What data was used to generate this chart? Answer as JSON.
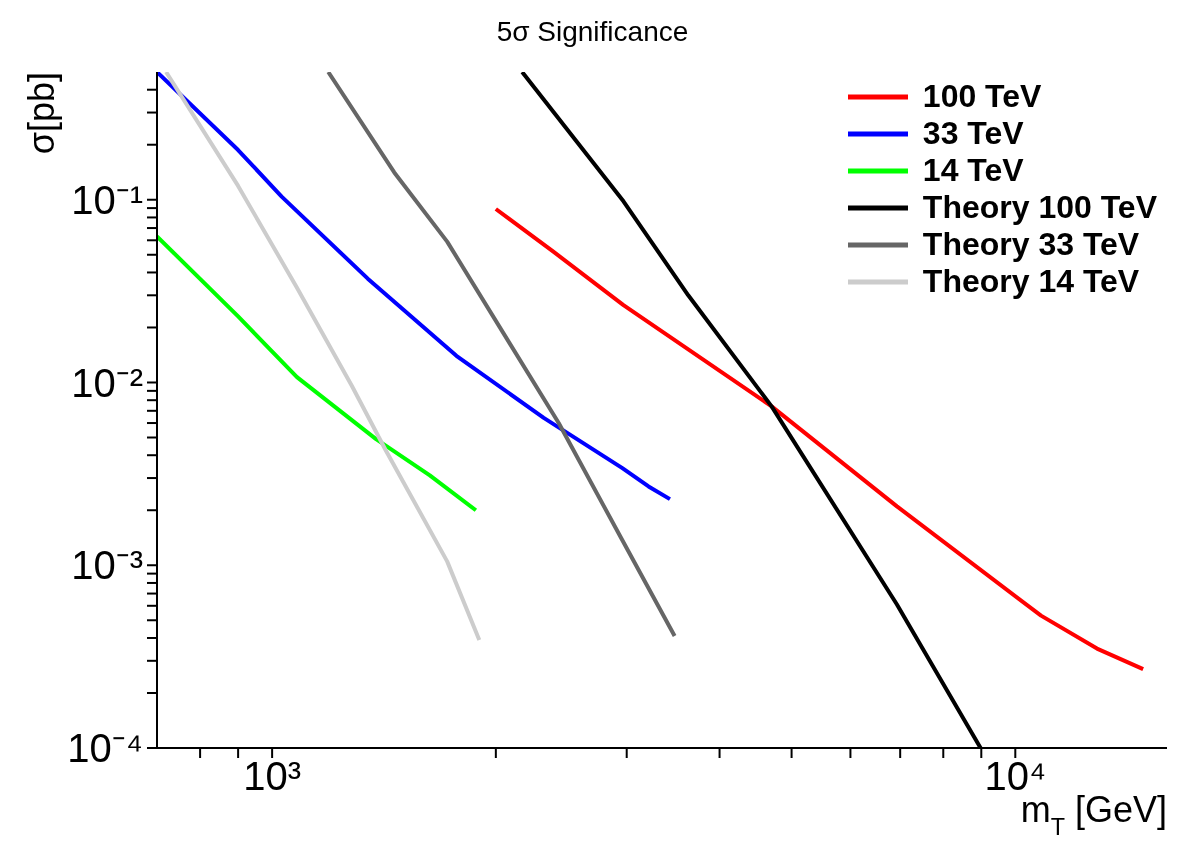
{
  "chart_data": {
    "type": "line",
    "title": "5σ Significance",
    "xlabel": "m$_{T}$ [GeV]",
    "ylabel": "σ[pb]",
    "log": "xy",
    "grid": false,
    "legend": "top right",
    "marker": "none",
    "line_style": "solid",
    "xlim": [
      700,
      16000
    ],
    "ylim": [
      0.0001,
      0.5
    ],
    "xticks": [
      {
        "value": 800,
        "label": null
      },
      {
        "value": 900,
        "label": null
      },
      {
        "value": 1000,
        "label": "10³"
      },
      {
        "value": 2000,
        "label": null
      },
      {
        "value": 3000,
        "label": null
      },
      {
        "value": 4000,
        "label": null
      },
      {
        "value": 5000,
        "label": null
      },
      {
        "value": 6000,
        "label": null
      },
      {
        "value": 7000,
        "label": null
      },
      {
        "value": 8000,
        "label": null
      },
      {
        "value": 9000,
        "label": null
      },
      {
        "value": 10000,
        "label": "10⁴"
      }
    ],
    "yticks": [
      {
        "value": 0.0001,
        "label": "10⁻⁴"
      },
      {
        "value": 0.0002,
        "label": null
      },
      {
        "value": 0.0003,
        "label": null
      },
      {
        "value": 0.0004,
        "label": null
      },
      {
        "value": 0.0005,
        "label": null
      },
      {
        "value": 0.0006,
        "label": null
      },
      {
        "value": 0.0007,
        "label": null
      },
      {
        "value": 0.0008,
        "label": null
      },
      {
        "value": 0.0009,
        "label": null
      },
      {
        "value": 0.001,
        "label": "10⁻³"
      },
      {
        "value": 0.002,
        "label": null
      },
      {
        "value": 0.003,
        "label": null
      },
      {
        "value": 0.004,
        "label": null
      },
      {
        "value": 0.005,
        "label": null
      },
      {
        "value": 0.006,
        "label": null
      },
      {
        "value": 0.007,
        "label": null
      },
      {
        "value": 0.008,
        "label": null
      },
      {
        "value": 0.009,
        "label": null
      },
      {
        "value": 0.01,
        "label": "10⁻²"
      },
      {
        "value": 0.02,
        "label": null
      },
      {
        "value": 0.03,
        "label": null
      },
      {
        "value": 0.04,
        "label": null
      },
      {
        "value": 0.05,
        "label": null
      },
      {
        "value": 0.06,
        "label": null
      },
      {
        "value": 0.07,
        "label": null
      },
      {
        "value": 0.08,
        "label": null
      },
      {
        "value": 0.09,
        "label": null
      },
      {
        "value": 0.1,
        "label": "10⁻¹"
      },
      {
        "value": 0.2,
        "label": null
      },
      {
        "value": 0.3,
        "label": null
      },
      {
        "value": 0.4,
        "label": null
      }
    ],
    "series": [
      {
        "name": "100 TeV",
        "color": "#ff0000",
        "x": [
          2000,
          2390,
          2970,
          4700,
          6930,
          10830,
          12880,
          14860
        ],
        "values": [
          0.089,
          0.052,
          0.0265,
          0.0074,
          0.0021,
          0.00053,
          0.00035,
          0.00027
        ]
      },
      {
        "name": "33 TeV",
        "color": "#0000ff",
        "x": [
          700,
          900,
          1030,
          1345,
          1770,
          2320,
          2960,
          3210,
          3430
        ],
        "values": [
          0.5,
          0.187,
          0.104,
          0.037,
          0.014,
          0.0064,
          0.0034,
          0.0027,
          0.0023
        ]
      },
      {
        "name": "14 TeV",
        "color": "#00ff00",
        "x": [
          700,
          900,
          1080,
          1380,
          1630,
          1880
        ],
        "values": [
          0.063,
          0.023,
          0.0107,
          0.0049,
          0.0031,
          0.002
        ]
      },
      {
        "name": "Theory 100 TeV",
        "color": "#000000",
        "x": [
          2170,
          2970,
          3630,
          4700,
          6930,
          8980
        ],
        "values": [
          0.5,
          0.098,
          0.03,
          0.0074,
          0.00061,
          0.0001
        ]
      },
      {
        "name": "Theory 33 TeV",
        "color": "#666666",
        "x": [
          1190,
          1460,
          1720,
          2430,
          2960,
          3480
        ],
        "values": [
          0.5,
          0.141,
          0.059,
          0.006,
          0.00137,
          0.00041
        ]
      },
      {
        "name": "Theory 14 TeV",
        "color": "#cccccc",
        "x": [
          720,
          900,
          1080,
          1280,
          1420,
          1720,
          1900
        ],
        "values": [
          0.5,
          0.119,
          0.033,
          0.0096,
          0.0043,
          0.00105,
          0.00039
        ]
      }
    ]
  }
}
